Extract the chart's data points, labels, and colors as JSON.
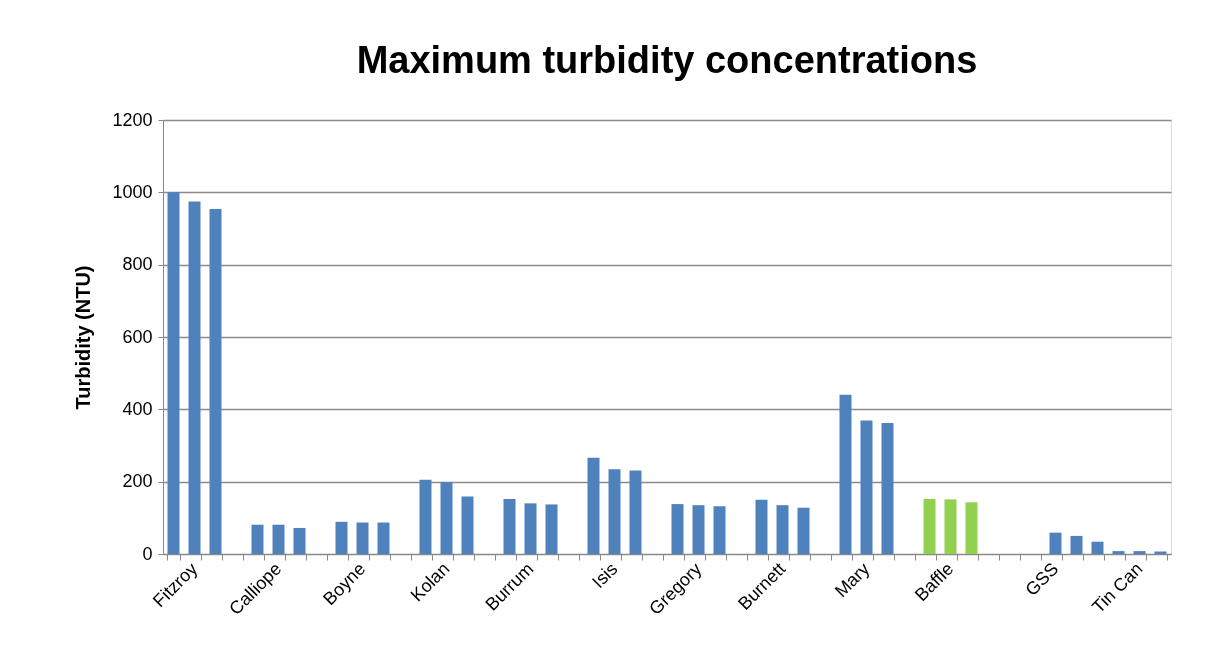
{
  "chart_data": {
    "type": "bar",
    "title": "Maximum turbidity concentrations",
    "ylabel": "Turbidity (NTU)",
    "categories": [
      null,
      "Fitzroy",
      null,
      null,
      null,
      "Calliope",
      null,
      null,
      null,
      "Boyne",
      null,
      null,
      null,
      "Kolan",
      null,
      null,
      null,
      "Burrum",
      null,
      null,
      null,
      "Isis",
      null,
      null,
      null,
      "Gregory",
      null,
      null,
      null,
      "Burnett",
      null,
      null,
      null,
      "Mary",
      null,
      null,
      null,
      "Baffle",
      null,
      null,
      null,
      null,
      "GSS",
      null,
      null,
      null,
      "Tin Can",
      null
    ],
    "values": [
      1000,
      975,
      954,
      null,
      81,
      81,
      72,
      null,
      89,
      87,
      87,
      null,
      205,
      199,
      159,
      null,
      152,
      140,
      137,
      null,
      266,
      234,
      231,
      null,
      138,
      135,
      132,
      null,
      150,
      135,
      128,
      null,
      440,
      369,
      362,
      null,
      152,
      151,
      143,
      null,
      null,
      null,
      59,
      50,
      34,
      8,
      8,
      7
    ],
    "colors": [
      "#4f81bd",
      "#4f81bd",
      "#4f81bd",
      null,
      "#4f81bd",
      "#4f81bd",
      "#4f81bd",
      null,
      "#4f81bd",
      "#4f81bd",
      "#4f81bd",
      null,
      "#4f81bd",
      "#4f81bd",
      "#4f81bd",
      null,
      "#4f81bd",
      "#4f81bd",
      "#4f81bd",
      null,
      "#4f81bd",
      "#4f81bd",
      "#4f81bd",
      null,
      "#4f81bd",
      "#4f81bd",
      "#4f81bd",
      null,
      "#4f81bd",
      "#4f81bd",
      "#4f81bd",
      null,
      "#4f81bd",
      "#4f81bd",
      "#4f81bd",
      null,
      "#92d050",
      "#92d050",
      "#92d050",
      null,
      null,
      null,
      "#4f81bd",
      "#4f81bd",
      "#4f81bd",
      "#4f81bd",
      "#4f81bd",
      "#4f81bd"
    ],
    "ylim": [
      0,
      1200
    ],
    "yticks": [
      0,
      200,
      400,
      600,
      800,
      1000,
      1200
    ],
    "grid": "y"
  }
}
